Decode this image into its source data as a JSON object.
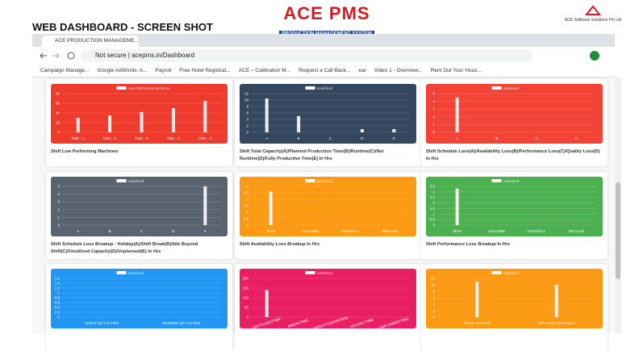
{
  "header": {
    "title": "WEB DASHBOARD - SCREEN SHOT",
    "logo": "ACE PMS",
    "logo_subtitle": "PRODUCTION MANAGEMENT SYSTEM",
    "company": "ACE Software Solutions Pvt Ltd"
  },
  "browser": {
    "tab": "ACE PRODUCTION MANAGEME...",
    "security": "Not secure",
    "url": "acepms.in/Dashboard",
    "bookmarks": [
      "Campaign Manage...",
      "Google AdWords: A...",
      "Payroll",
      "Free Hotel Registrat...",
      "ACE – Calibration M...",
      "Request a Call Back...",
      "ear",
      "Video 1 - Overview...",
      "Rent Out Your Hous..."
    ]
  },
  "cards": [
    {
      "title": "Shift Low Performing Machines",
      "color": "#ef3b2d",
      "legend": "Low Performing Machines",
      "categories": [
        "CNC - 1",
        "CNC - 2",
        "CNC - 3",
        "CNC - 4",
        "CNC - 3"
      ],
      "values": [
        30,
        35,
        42,
        50,
        65
      ],
      "ylim": [
        0,
        80
      ],
      "yticks": [
        0,
        20,
        40,
        60,
        80
      ]
    },
    {
      "title": "Shift Total Capacity(A)/Planned Production Time(B)/Runtime(C)/Net Runtime(D)/Fully Productive Time(E) In Hrs",
      "color": "#34475f",
      "legend": "undefined",
      "categories": [
        "A",
        "B",
        "C",
        "D",
        "E"
      ],
      "values": [
        10.5,
        5,
        0,
        1,
        1
      ],
      "ylim": [
        0,
        12
      ],
      "yticks": [
        0,
        2,
        4,
        6,
        8,
        10,
        12
      ]
    },
    {
      "title": "Shift Schedule Loss(A)/Availability Loss(B)/Performance Loss(C)/Quality Loss(D) In Hrs",
      "color": "#f24336",
      "legend": "undefined",
      "categories": [
        "A",
        "B",
        "C",
        "D"
      ],
      "values": [
        4.5,
        0,
        0,
        0
      ],
      "ylim": [
        0,
        5
      ],
      "yticks": [
        0,
        1,
        2,
        3,
        4,
        5
      ]
    },
    {
      "title": "Shift Schedule Loss Breakup - Holiday(A)/Shift Break(B)/Idle Beyond Shift(C)/Unutilized Capacity(D)/Unplanned(E) In Hrs",
      "color": "#5a6470",
      "legend": "undefined",
      "categories": [
        "A",
        "B",
        "C",
        "D",
        "E"
      ],
      "values": [
        0,
        0,
        0,
        0,
        5
      ],
      "ylim": [
        0,
        5
      ],
      "yticks": [
        0,
        1,
        2,
        3,
        4,
        5
      ]
    },
    {
      "title": "Shift Availability Loss Breakup In Hrs",
      "color": "#fd9a14",
      "legend": "undefined",
      "categories": [
        "MAN",
        "MACHINE",
        "MATERIAL",
        "METHOD"
      ],
      "values": [
        2.6,
        0,
        0,
        0
      ],
      "ylim": [
        0,
        3
      ],
      "yticks": [
        0,
        0.5,
        1,
        1.5,
        2,
        2.5,
        3
      ]
    },
    {
      "title": "Shift Performance Loss Breakup In Hrs",
      "color": "#4caf50",
      "legend": "undefined",
      "categories": [
        "MAN",
        "MACHINE",
        "MATERIAL",
        "METHOD"
      ],
      "values": [
        3.3,
        0,
        0,
        0
      ],
      "ylim": [
        0,
        3.5
      ],
      "yticks": [
        0,
        0.5,
        1,
        1.5,
        2,
        2.5,
        3,
        3.5
      ]
    },
    {
      "title": "",
      "color": "#2196f3",
      "legend": "undefined",
      "categories": [
        "SCRAP QTY IN HRS",
        "REWORK QTY IN HRS"
      ],
      "values": [
        0,
        0
      ],
      "ylim": [
        0,
        1.6
      ],
      "yticks": [
        0,
        0.2,
        0.4,
        0.6,
        0.8,
        1,
        1.2,
        1.4,
        1.6
      ]
    },
    {
      "title": "",
      "color": "#e91e63",
      "legend": "undefined",
      "rotate": true,
      "categories": [
        "UNUTILIZEDTIME",
        "BREAKTIME",
        "CAPACITYDOWNTIME",
        "HOLIDAYTIME",
        "UNPLANNEDTIME"
      ],
      "values": [
        140,
        0,
        0,
        0,
        0
      ],
      "ylim": [
        0,
        200
      ],
      "yticks": [
        0,
        50,
        100,
        150,
        200
      ]
    },
    {
      "title": "",
      "color": "#fd9a14",
      "legend": "undefined",
      "categories": [
        "POOR OUTPUT",
        "DATA NOT AVAILABLE"
      ],
      "values": [
        11,
        10
      ],
      "ylim": [
        0,
        12
      ],
      "yticks": [
        0,
        2,
        4,
        6,
        8,
        10,
        12
      ]
    }
  ]
}
